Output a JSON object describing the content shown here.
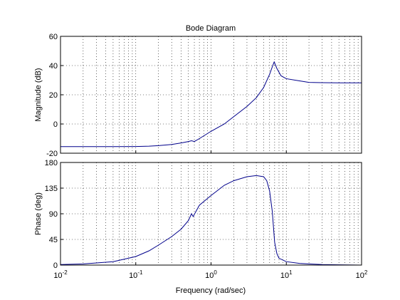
{
  "chart_data": [
    {
      "type": "line",
      "title": "Bode Diagram",
      "ylabel": "Magnitude (dB)",
      "xlabel": "",
      "xscale": "log",
      "xlim": [
        0.01,
        100
      ],
      "ylim": [
        -20,
        60
      ],
      "yticks": [
        "-20",
        "0",
        "20",
        "40",
        "60"
      ],
      "grid": true,
      "line_color": "#00008b",
      "series": [
        {
          "x": [
            0.01,
            0.02,
            0.05,
            0.1,
            0.15,
            0.2,
            0.3,
            0.4,
            0.5,
            0.55,
            0.6,
            0.7,
            1.0,
            1.5,
            2.0,
            3.0,
            4.0,
            5.0,
            6.0,
            6.5,
            6.9,
            7.5,
            8.5,
            10,
            15,
            20,
            30,
            50,
            100
          ],
          "y": [
            -15.5,
            -15.5,
            -15.5,
            -15.4,
            -15.2,
            -14.8,
            -14,
            -13,
            -12,
            -11.5,
            -12,
            -10,
            -5,
            0,
            5,
            12,
            18,
            25,
            34,
            39,
            42.5,
            38,
            33,
            31,
            29.5,
            28.5,
            28.3,
            28.2,
            28.2
          ]
        }
      ]
    },
    {
      "type": "line",
      "title": "",
      "ylabel": "Phase (deg)",
      "xlabel": "Frequency  (rad/sec)",
      "xscale": "log",
      "xlim": [
        0.01,
        100
      ],
      "ylim": [
        0,
        180
      ],
      "yticks": [
        "0",
        "45",
        "90",
        "135",
        "180"
      ],
      "grid": true,
      "line_color": "#00008b",
      "series": [
        {
          "x": [
            0.01,
            0.02,
            0.05,
            0.1,
            0.15,
            0.2,
            0.3,
            0.4,
            0.5,
            0.55,
            0.58,
            0.6,
            0.7,
            1.0,
            1.5,
            2.0,
            3.0,
            4.0,
            5.0,
            5.5,
            6.0,
            6.5,
            7.0,
            7.5,
            8.0,
            10,
            15,
            20,
            30,
            50,
            100
          ],
          "y": [
            1,
            2,
            6,
            15,
            25,
            35,
            50,
            63,
            78,
            90,
            85,
            89,
            105,
            122,
            140,
            148,
            155,
            157,
            155,
            148,
            130,
            95,
            40,
            20,
            12,
            6,
            3,
            2,
            1,
            0.5,
            0
          ]
        }
      ]
    }
  ],
  "xticks": [
    {
      "base": "10",
      "exp": "-2"
    },
    {
      "base": "10",
      "exp": "-1"
    },
    {
      "base": "10",
      "exp": "0"
    },
    {
      "base": "10",
      "exp": "1"
    },
    {
      "base": "10",
      "exp": "2"
    }
  ]
}
